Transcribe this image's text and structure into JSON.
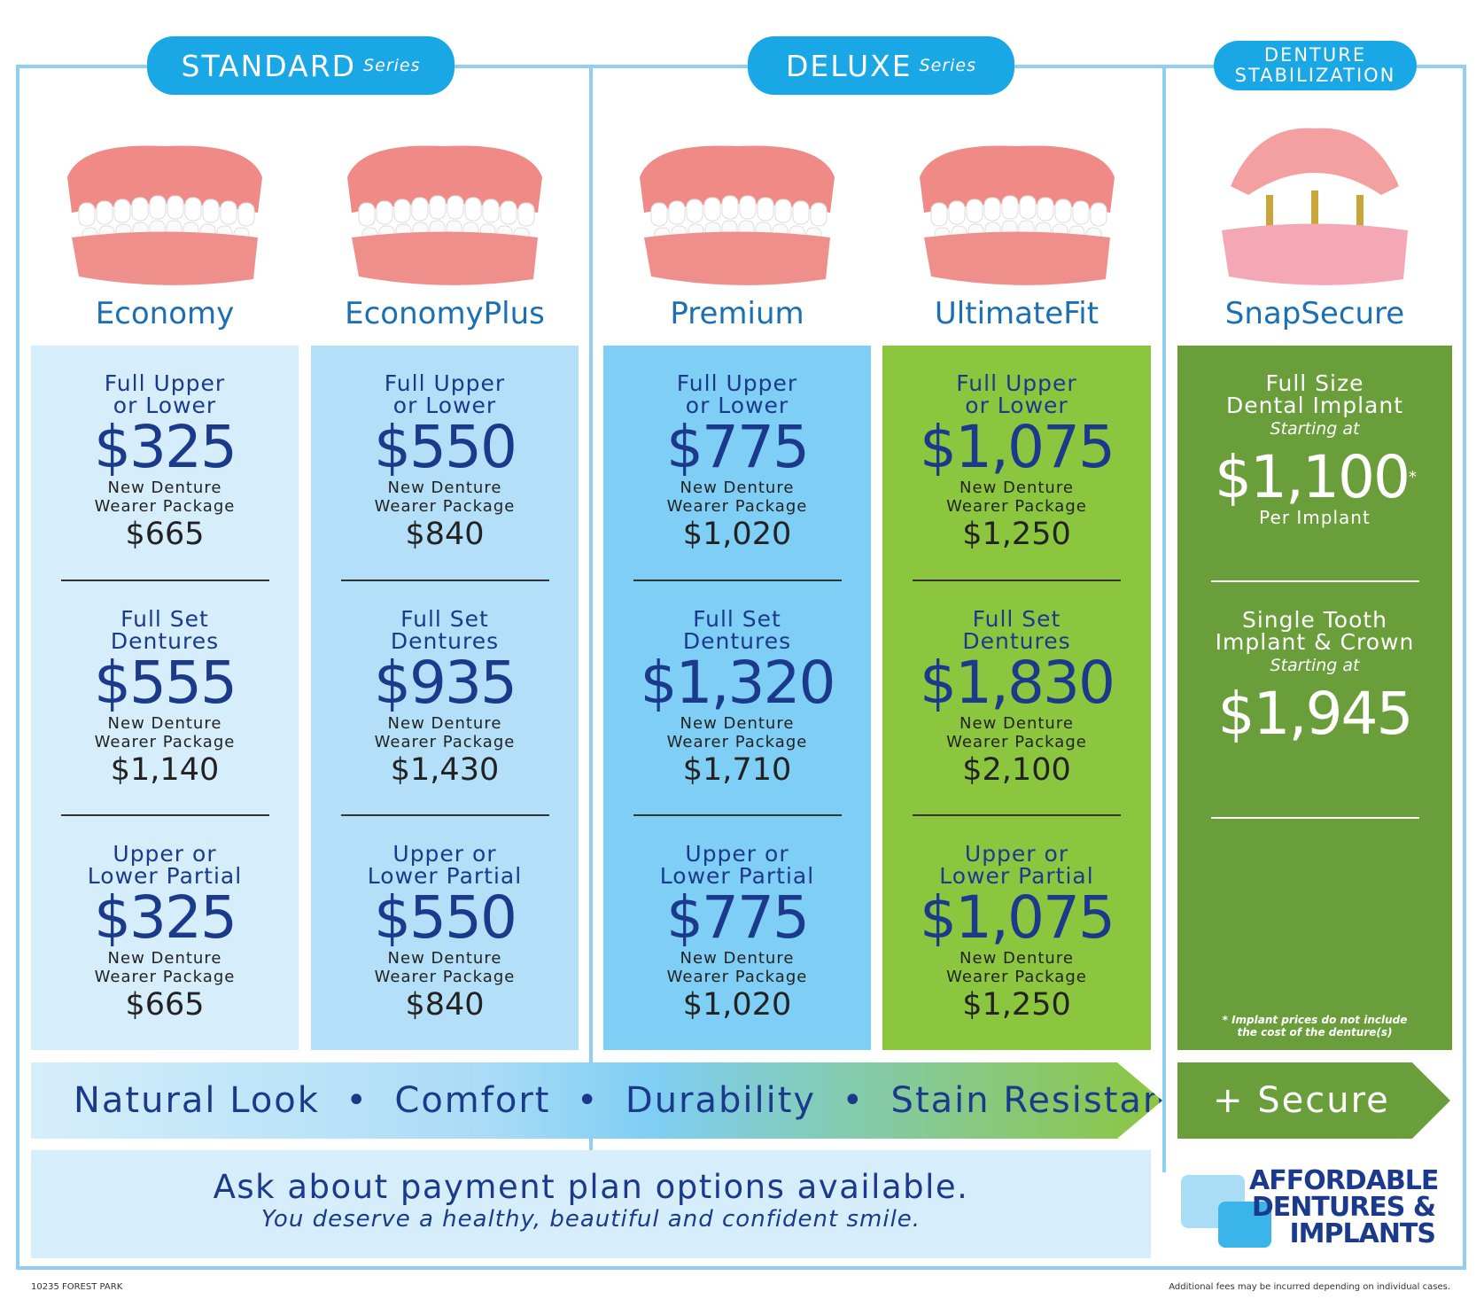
{
  "series": [
    {
      "label": "STANDARD",
      "sub": "Series"
    },
    {
      "label": "DELUXE",
      "sub": "Series"
    },
    {
      "label": "DENTURE\nSTABILIZATION"
    }
  ],
  "products": [
    {
      "name": "Economy",
      "tiers": [
        {
          "title": "Full Upper\nor Lower",
          "price": "$325",
          "package_label": "New Denture\nWearer Package",
          "package_price": "$665"
        },
        {
          "title": "Full Set\nDentures",
          "price": "$555",
          "package_label": "New Denture\nWearer Package",
          "package_price": "$1,140"
        },
        {
          "title": "Upper or\nLower Partial",
          "price": "$325",
          "package_label": "New Denture\nWearer Package",
          "package_price": "$665"
        }
      ]
    },
    {
      "name": "EconomyPlus",
      "tiers": [
        {
          "title": "Full Upper\nor Lower",
          "price": "$550",
          "package_label": "New Denture\nWearer Package",
          "package_price": "$840"
        },
        {
          "title": "Full Set\nDentures",
          "price": "$935",
          "package_label": "New Denture\nWearer Package",
          "package_price": "$1,430"
        },
        {
          "title": "Upper or\nLower Partial",
          "price": "$550",
          "package_label": "New Denture\nWearer Package",
          "package_price": "$840"
        }
      ]
    },
    {
      "name": "Premium",
      "tiers": [
        {
          "title": "Full Upper\nor Lower",
          "price": "$775",
          "package_label": "New Denture\nWearer Package",
          "package_price": "$1,020"
        },
        {
          "title": "Full Set\nDentures",
          "price": "$1,320",
          "package_label": "New Denture\nWearer Package",
          "package_price": "$1,710"
        },
        {
          "title": "Upper or\nLower Partial",
          "price": "$775",
          "package_label": "New Denture\nWearer Package",
          "package_price": "$1,020"
        }
      ]
    },
    {
      "name": "UltimateFit",
      "tiers": [
        {
          "title": "Full Upper\nor Lower",
          "price": "$1,075",
          "package_label": "New Denture\nWearer Package",
          "package_price": "$1,250"
        },
        {
          "title": "Full Set\nDentures",
          "price": "$1,830",
          "package_label": "New Denture\nWearer Package",
          "package_price": "$2,100"
        },
        {
          "title": "Upper or\nLower Partial",
          "price": "$1,075",
          "package_label": "New Denture\nWearer Package",
          "package_price": "$1,250"
        }
      ]
    },
    {
      "name": "SnapSecure",
      "tiers": [
        {
          "title": "Full Size\nDental Implant",
          "note": "Starting at",
          "price": "$1,100",
          "mark": "*",
          "per": "Per Implant"
        },
        {
          "title": "Single Tooth\nImplant & Crown",
          "note": "Starting at",
          "price": "$1,945"
        }
      ],
      "footnote": "* Implant prices do not include\nthe cost of the denture(s)"
    }
  ],
  "banner": "Natural Look  •  Comfort  •  Durability  •  Stain Resistance",
  "secure": "+ Secure",
  "payment": {
    "headline": "Ask about payment plan options available.",
    "tagline": "You deserve a healthy, beautiful and confident smile."
  },
  "logo": [
    "AFFORDABLE",
    "DENTURES &",
    "IMPLANTS"
  ],
  "footer": {
    "left": "10235 FOREST PARK",
    "right": "Additional fees may be incurred depending on individual cases."
  }
}
